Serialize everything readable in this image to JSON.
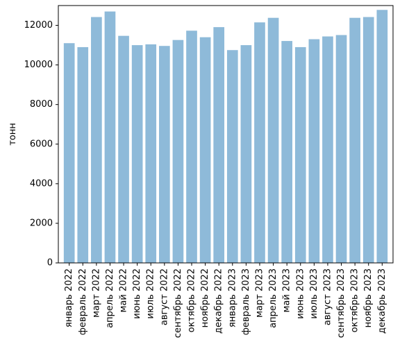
{
  "chart_data": {
    "type": "bar",
    "title": "",
    "xlabel": "",
    "ylabel": "тонн",
    "ylim": [
      0,
      13000
    ],
    "yticks": [
      0,
      2000,
      4000,
      6000,
      8000,
      10000,
      12000
    ],
    "grid": false,
    "categories": [
      "январь 2022",
      "февраль 2022",
      "март 2022",
      "апрель 2022",
      "май 2022",
      "июнь 2022",
      "июль 2022",
      "август 2022",
      "сентябрь 2022",
      "октябрь 2022",
      "ноябрь 2022",
      "декабрь 2022",
      "январь 2023",
      "февраль 2023",
      "март 2023",
      "апрель 2023",
      "май 2023",
      "июнь 2023",
      "июль 2023",
      "август 2023",
      "сентябрь 2023",
      "октябрь 2023",
      "ноябрь 2023",
      "декабрь 2023"
    ],
    "values": [
      11100,
      10900,
      12420,
      12700,
      11470,
      11000,
      11040,
      10960,
      11260,
      11730,
      11400,
      11910,
      10750,
      11000,
      12150,
      12380,
      11210,
      10900,
      11300,
      11440,
      11510,
      12380,
      12420,
      12780
    ],
    "bar_color": "#8ebad9",
    "axis_color": "#000000"
  }
}
